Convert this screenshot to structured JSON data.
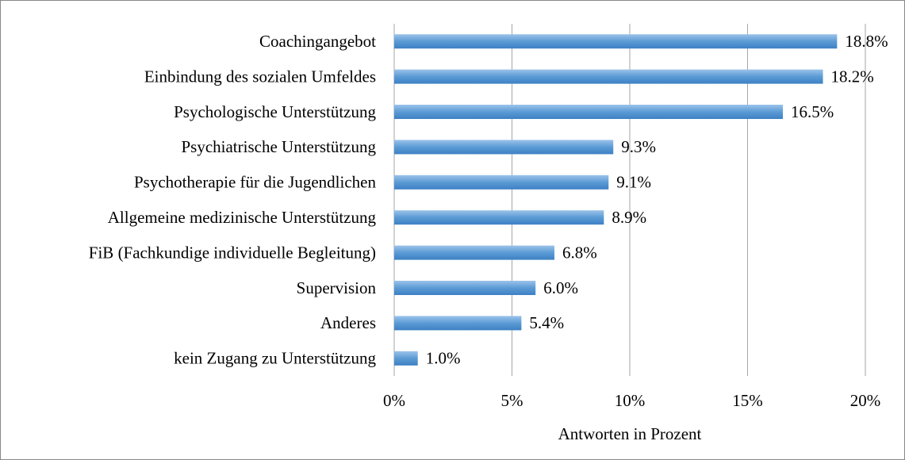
{
  "chart_data": {
    "type": "barh",
    "categories": [
      "Coachingangebot",
      "Einbindung des sozialen Umfeldes",
      "Psychologische Unterstützung",
      "Psychiatrische Unterstützung",
      "Psychotherapie für die Jugendlichen",
      "Allgemeine medizinische Unterstützung",
      "FiB (Fachkundige individuelle Begleitung)",
      "Supervision",
      "Anderes",
      "kein Zugang zu Unterstützung"
    ],
    "values": [
      18.8,
      18.2,
      16.5,
      9.3,
      9.1,
      8.9,
      6.8,
      6.0,
      5.4,
      1.0
    ],
    "value_labels": [
      "18.8%",
      "18.2%",
      "16.5%",
      "9.3%",
      "9.1%",
      "8.9%",
      "6.8%",
      "6.0%",
      "5.4%",
      "1.0%"
    ],
    "color": "#5b9bd5",
    "xlabel": "Antworten in Prozent",
    "xlim": [
      0,
      20
    ],
    "xticks": [
      {
        "value": 0,
        "label": "0%"
      },
      {
        "value": 5,
        "label": "5%"
      },
      {
        "value": 10,
        "label": "10%"
      },
      {
        "value": 15,
        "label": "15%"
      },
      {
        "value": 20,
        "label": "20%"
      }
    ],
    "grid": true
  }
}
